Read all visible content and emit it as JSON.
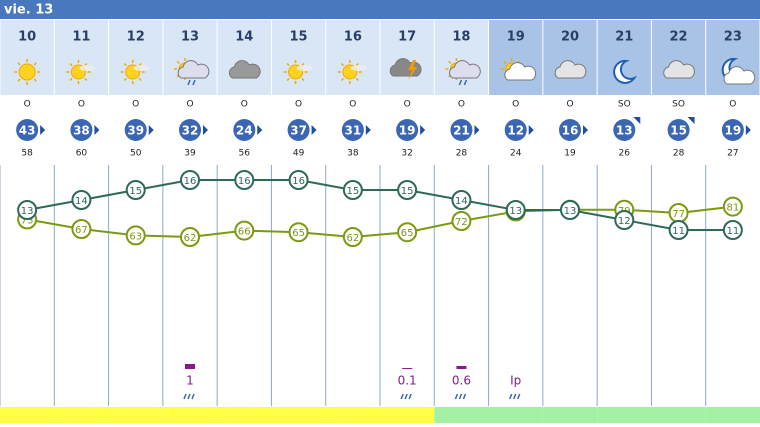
{
  "header": {
    "title": "vie. 13"
  },
  "hours": [
    "10",
    "11",
    "12",
    "13",
    "14",
    "15",
    "16",
    "17",
    "18",
    "19",
    "20",
    "21",
    "22",
    "23"
  ],
  "wind_dir": [
    "O",
    "O",
    "O",
    "O",
    "O",
    "O",
    "O",
    "O",
    "O",
    "O",
    "O",
    "SO",
    "SO",
    "O"
  ],
  "wind_speed": [
    43,
    38,
    39,
    32,
    24,
    37,
    31,
    19,
    21,
    12,
    16,
    13,
    15,
    19
  ],
  "gust": [
    58,
    60,
    50,
    39,
    56,
    49,
    38,
    32,
    28,
    24,
    19,
    26,
    28,
    27
  ],
  "temperature": {
    "color": "#2f6a55",
    "values": [
      13,
      14,
      15,
      16,
      16,
      16,
      15,
      15,
      14,
      13,
      13,
      12,
      11,
      11
    ]
  },
  "humidity": {
    "color": "#7a9a12",
    "values": [
      73,
      67,
      63,
      62,
      66,
      65,
      62,
      65,
      72,
      78,
      79,
      79,
      77,
      81
    ]
  },
  "precip": [
    null,
    null,
    null,
    1,
    null,
    null,
    null,
    0.1,
    0.6,
    "Ip",
    null,
    null,
    null,
    null
  ],
  "bar_colors": [
    "#ffff44",
    "#ffff44",
    "#ffff44",
    "#ffff44",
    "#ffff44",
    "#ffff44",
    "#ffff44",
    "#ffff44",
    "#a4f0a4",
    "#a4f0a4",
    "#a4f0a4",
    "#a4f0a4",
    "#a4f0a4",
    "#a4f0a4"
  ]
}
